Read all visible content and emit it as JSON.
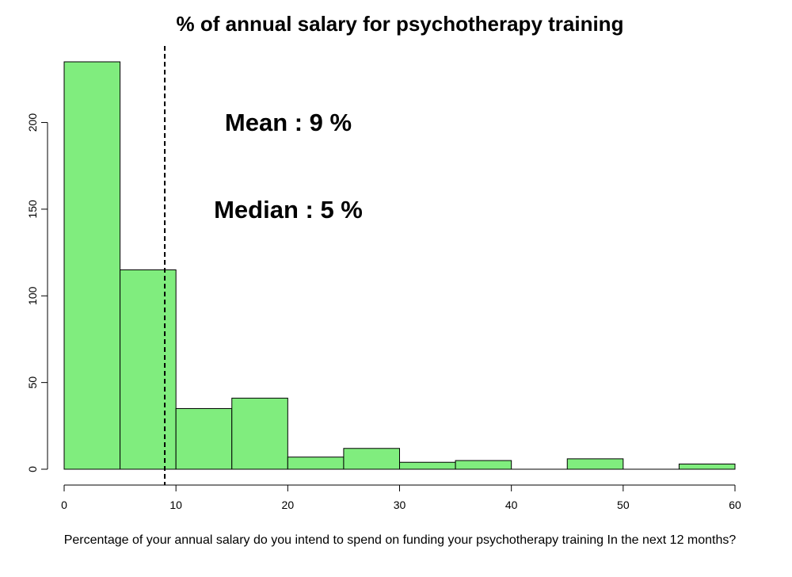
{
  "chart_data": {
    "type": "bar",
    "title": "% of annual salary for psychotherapy training",
    "xlabel": "Percentage of your annual salary do you intend to spend on funding your psychotherapy training In the next 12 months?",
    "ylabel": "",
    "bins": [
      {
        "from": 0,
        "to": 5,
        "count": 235
      },
      {
        "from": 5,
        "to": 10,
        "count": 115
      },
      {
        "from": 10,
        "to": 15,
        "count": 35
      },
      {
        "from": 15,
        "to": 20,
        "count": 41
      },
      {
        "from": 20,
        "to": 25,
        "count": 7
      },
      {
        "from": 25,
        "to": 30,
        "count": 12
      },
      {
        "from": 30,
        "to": 35,
        "count": 4
      },
      {
        "from": 35,
        "to": 40,
        "count": 5
      },
      {
        "from": 40,
        "to": 45,
        "count": 0
      },
      {
        "from": 45,
        "to": 50,
        "count": 6
      },
      {
        "from": 50,
        "to": 55,
        "count": 0
      },
      {
        "from": 55,
        "to": 60,
        "count": 3
      }
    ],
    "xlim": [
      0,
      60
    ],
    "ylim": [
      0,
      235
    ],
    "x_ticks": [
      0,
      10,
      20,
      30,
      40,
      50,
      60
    ],
    "y_ticks": [
      0,
      50,
      100,
      150,
      200
    ],
    "mean_line_x": 9,
    "grid": false,
    "bar_fill": "#80ed7e",
    "bar_stroke": "#000000",
    "annotations": {
      "mean": "Mean : 9  %",
      "median": "Median : 5  %"
    }
  }
}
